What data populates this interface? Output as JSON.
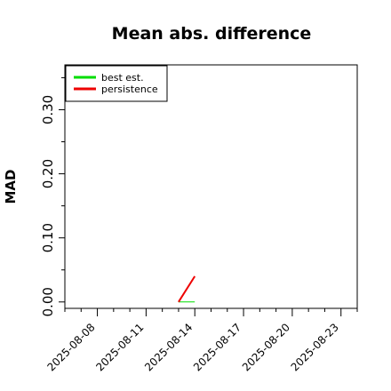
{
  "chart_data": {
    "type": "line",
    "title": "Mean abs. difference",
    "xlabel": "",
    "ylabel": "MAD",
    "x": [
      "2025-08-13",
      "2025-08-14"
    ],
    "xticks": [
      "2025-08-08",
      "2025-08-11",
      "2025-08-14",
      "2025-08-17",
      "2025-08-20",
      "2025-08-23"
    ],
    "xlim": [
      "2025-08-06",
      "2025-08-24"
    ],
    "yticks": [
      "0.00",
      "0.10",
      "0.20",
      "0.30"
    ],
    "ylim": [
      -0.01,
      0.37
    ],
    "grid": false,
    "legend_position": "top-left",
    "series": [
      {
        "name": "best est.",
        "color": "#00dd00",
        "values": [
          0.0,
          0.0
        ]
      },
      {
        "name": "persistence",
        "color": "#ee0000",
        "values": [
          0.0,
          0.04
        ]
      }
    ]
  }
}
